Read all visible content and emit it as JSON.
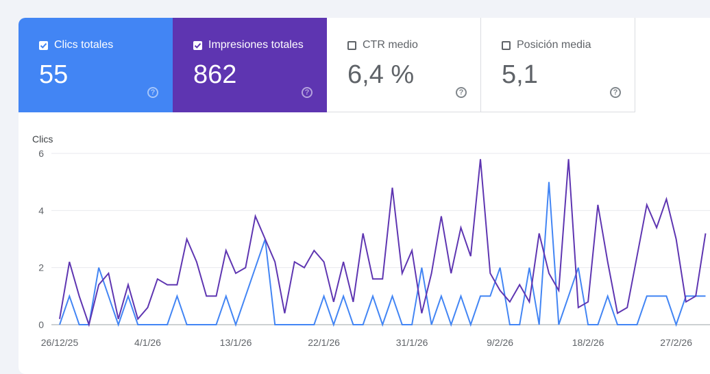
{
  "metrics": [
    {
      "label": "Clics totales",
      "value": "55",
      "checked": true
    },
    {
      "label": "Impresiones totales",
      "value": "862",
      "checked": true
    },
    {
      "label": "CTR medio",
      "value": "6,4 %",
      "checked": false
    },
    {
      "label": "Posición media",
      "value": "5,1",
      "checked": false
    }
  ],
  "help_glyph": "?",
  "colors": {
    "clicks": "#4285f4",
    "impressions": "#5e35b1",
    "grid": "#e8eaed"
  },
  "chart_data": {
    "type": "line",
    "ylabel": "Clics",
    "ylim": [
      0,
      6
    ],
    "yticks": [
      "0",
      "2",
      "4",
      "6"
    ],
    "xtick_labels": [
      "26/12/25",
      "4/1/26",
      "13/1/26",
      "22/1/26",
      "31/1/26",
      "9/2/26",
      "18/2/26",
      "27/2/26"
    ],
    "x": [
      "26/12/25",
      "27/12/25",
      "28/12/25",
      "29/12/25",
      "30/12/25",
      "31/12/25",
      "1/1/26",
      "2/1/26",
      "3/1/26",
      "4/1/26",
      "5/1/26",
      "6/1/26",
      "7/1/26",
      "8/1/26",
      "9/1/26",
      "10/1/26",
      "11/1/26",
      "12/1/26",
      "13/1/26",
      "14/1/26",
      "15/1/26",
      "16/1/26",
      "17/1/26",
      "18/1/26",
      "19/1/26",
      "20/1/26",
      "21/1/26",
      "22/1/26",
      "23/1/26",
      "24/1/26",
      "25/1/26",
      "26/1/26",
      "27/1/26",
      "28/1/26",
      "29/1/26",
      "30/1/26",
      "31/1/26",
      "1/2/26",
      "2/2/26",
      "3/2/26",
      "4/2/26",
      "5/2/26",
      "6/2/26",
      "7/2/26",
      "8/2/26",
      "9/2/26",
      "10/2/26",
      "11/2/26",
      "12/2/26",
      "13/2/26",
      "14/2/26",
      "15/2/26",
      "16/2/26",
      "17/2/26",
      "18/2/26",
      "19/2/26",
      "20/2/26",
      "21/2/26",
      "22/2/26",
      "23/2/26",
      "24/2/26",
      "25/2/26",
      "26/2/26",
      "27/2/26",
      "28/2/26",
      "1/3/26",
      "2/3/26"
    ],
    "series": [
      {
        "name": "Clics totales",
        "values": [
          0,
          1,
          0,
          0,
          2,
          1,
          0,
          1,
          0,
          0,
          0,
          0,
          1,
          0,
          0,
          0,
          0,
          1,
          0,
          1,
          2,
          3,
          0,
          0,
          0,
          0,
          0,
          1,
          0,
          1,
          0,
          0,
          1,
          0,
          1,
          0,
          0,
          2,
          0,
          1,
          0,
          1,
          0,
          1,
          1,
          2,
          0,
          0,
          2,
          0,
          5,
          0,
          1,
          2,
          0,
          0,
          1,
          0,
          0,
          0,
          1,
          1,
          1,
          0,
          1,
          1,
          1
        ]
      },
      {
        "name": "Impresiones totales",
        "values": [
          0.2,
          2.2,
          1,
          0,
          1.4,
          1.8,
          0.2,
          1.4,
          0.2,
          0.6,
          1.6,
          1.4,
          1.4,
          3,
          2.2,
          1,
          1,
          2.6,
          1.8,
          2,
          3.8,
          3,
          2.2,
          0.4,
          2.2,
          2,
          2.6,
          2.2,
          0.8,
          2.2,
          0.8,
          3.2,
          1.6,
          1.6,
          4.8,
          1.8,
          2.6,
          0.4,
          1.8,
          3.8,
          1.8,
          3.4,
          2.4,
          5.8,
          1.8,
          1.2,
          0.8,
          1.4,
          0.8,
          3.2,
          1.8,
          1.2,
          5.8,
          0.6,
          0.8,
          4.2,
          2.2,
          0.4,
          0.6,
          2.4,
          4.2,
          3.4,
          4.4,
          3,
          0.8,
          1,
          3.2
        ]
      }
    ]
  }
}
